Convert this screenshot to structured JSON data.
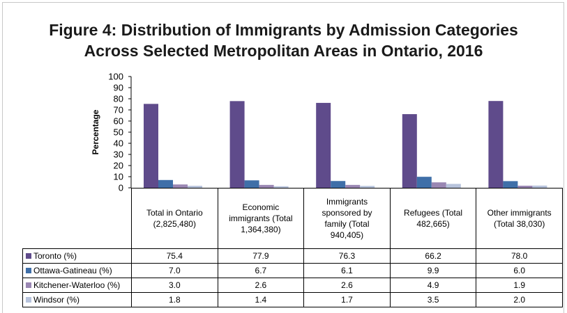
{
  "chart_data": {
    "type": "bar",
    "title": "Figure 4: Distribution of Immigrants by Admission Categories",
    "subtitle": "Across Selected Metropolitan Areas in Ontario, 2016",
    "ylabel": "Percentage",
    "xlabel": "",
    "ylim": [
      0,
      100
    ],
    "yticks": [
      0,
      10,
      20,
      30,
      40,
      50,
      60,
      70,
      80,
      90,
      100
    ],
    "grid": false,
    "legend": "data-table-left",
    "categories": [
      "Total in Ontario (2,825,480)",
      "Economic immigrants (Total 1,364,380)",
      "Immigrants sponsored by family (Total 940,405)",
      "Refugees (Total 482,665)",
      "Other immigrants (Total 38,030)"
    ],
    "category_lines": [
      [
        "Total in Ontario",
        "(2,825,480)"
      ],
      [
        "Economic",
        "immigrants (Total",
        "1,364,380)"
      ],
      [
        "Immigrants",
        "sponsored by",
        "family (Total",
        "940,405)"
      ],
      [
        "Refugees (Total",
        "482,665)"
      ],
      [
        "Other immigrants",
        "(Total 38,030)"
      ]
    ],
    "series": [
      {
        "name": "Toronto (%)",
        "color": "#5f4b8b",
        "values": [
          75.4,
          77.9,
          76.3,
          66.2,
          78.0
        ],
        "labels": [
          "75.4",
          "77.9",
          "76.3",
          "66.2",
          "78.0"
        ]
      },
      {
        "name": "Ottawa-Gatineau (%)",
        "color": "#3f6fa8",
        "values": [
          7.0,
          6.7,
          6.1,
          9.9,
          6.0
        ],
        "labels": [
          "7.0",
          "6.7",
          "6.1",
          "9.9",
          "6.0"
        ]
      },
      {
        "name": "Kitchener-Waterloo (%)",
        "color": "#9a87b3",
        "values": [
          3.0,
          2.6,
          2.6,
          4.9,
          1.9
        ],
        "labels": [
          "3.0",
          "2.6",
          "2.6",
          "4.9",
          "1.9"
        ]
      },
      {
        "name": "Windsor (%)",
        "color": "#b7c3dc",
        "values": [
          1.8,
          1.4,
          1.7,
          3.5,
          2.0
        ],
        "labels": [
          "1.8",
          "1.4",
          "1.7",
          "3.5",
          "2.0"
        ]
      }
    ]
  }
}
